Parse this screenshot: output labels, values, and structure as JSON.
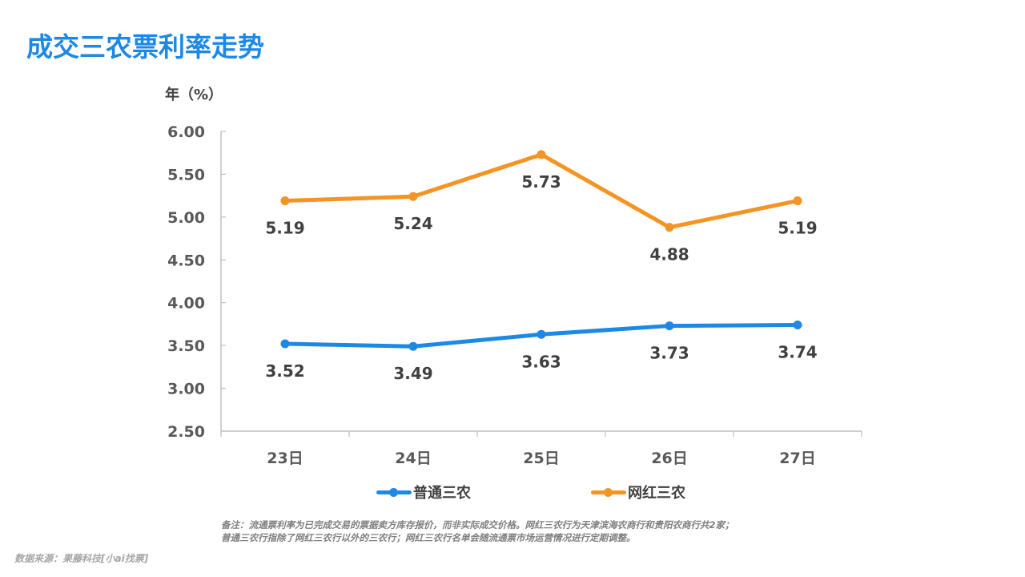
{
  "title": "成交三农票利率走势",
  "colors": {
    "title": "#1e88e5",
    "series_blue": "#1e88e5",
    "series_orange": "#f39423",
    "axis": "#bfbfbf",
    "label": "#404040"
  },
  "chart_data": {
    "type": "line",
    "title": "成交三农票利率走势",
    "ylabel": "年（%）",
    "xlabel": "",
    "categories": [
      "23日",
      "24日",
      "25日",
      "26日",
      "27日"
    ],
    "ylim": [
      2.5,
      6.0
    ],
    "yticks": [
      "2.50",
      "3.00",
      "3.50",
      "4.00",
      "4.50",
      "5.00",
      "5.50",
      "6.00"
    ],
    "grid": false,
    "legend_position": "bottom",
    "series": [
      {
        "name": "普通三农",
        "color": "#1e88e5",
        "values": [
          3.52,
          3.49,
          3.63,
          3.73,
          3.74
        ],
        "labels": [
          "3.52",
          "3.49",
          "3.63",
          "3.73",
          "3.74"
        ]
      },
      {
        "name": "网红三农",
        "color": "#f39423",
        "values": [
          5.19,
          5.24,
          5.73,
          4.88,
          5.19
        ],
        "labels": [
          "5.19",
          "5.24",
          "5.73",
          "4.88",
          "5.19"
        ]
      }
    ]
  },
  "note_lines": [
    "备注：流通票利率为已完成交易的票据卖方库存报价，而非实际成交价格。网红三农行为天津滨海农商行和贵阳农商行共2家；",
    "普通三农行指除了网红三农行以外的三农行；网红三农行名单会随流通票市场运营情况进行定期调整。"
  ],
  "source": "数据来源：果藤科技[小ai找票]"
}
